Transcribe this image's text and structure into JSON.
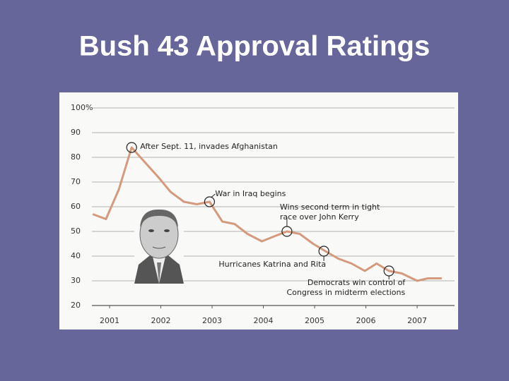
{
  "chart_data": {
    "type": "line",
    "title": "Bush 43 Approval Ratings",
    "x": [
      2001.17,
      2001.43,
      2001.68,
      2001.93,
      2002.19,
      2002.45,
      2002.69,
      2002.95,
      2003.2,
      2003.45,
      2003.7,
      2003.94,
      2004.19,
      2004.47,
      2004.71,
      2004.96,
      2005.21,
      2005.47,
      2005.71,
      2005.96,
      2006.22,
      2006.48,
      2006.71,
      2006.95,
      2007.2,
      2007.5,
      2007.71,
      2007.98
    ],
    "values": [
      57,
      55,
      67,
      84,
      78,
      72,
      66,
      62,
      61,
      62,
      54,
      53,
      49,
      46,
      48,
      50,
      49,
      45,
      42,
      39,
      37,
      34,
      37,
      34,
      33,
      30,
      31,
      31
    ],
    "color": "#d49a7e",
    "xlim": [
      2001.155,
      2008.23
    ],
    "xticks": [
      {
        "value": 2001.5,
        "label": "2001"
      },
      {
        "value": 2002.5,
        "label": "2002"
      },
      {
        "value": 2003.5,
        "label": "2003"
      },
      {
        "value": 2004.5,
        "label": "2004"
      },
      {
        "value": 2005.5,
        "label": "2005"
      },
      {
        "value": 2006.5,
        "label": "2006"
      },
      {
        "value": 2007.5,
        "label": "2007"
      }
    ],
    "ylim": [
      20,
      100
    ],
    "yticks": [
      20,
      30,
      40,
      50,
      60,
      70,
      80,
      90,
      {
        "value": 100,
        "label": "100%"
      }
    ],
    "grid": true,
    "annotations": [
      {
        "text": [
          "After Sept. 11, invades Afghanistan"
        ],
        "x": 2001.93,
        "y": 84
      },
      {
        "text": [
          "War in Iraq begins"
        ],
        "x": 2003.45,
        "y": 62
      },
      {
        "text": [
          "Wins second term in tight",
          "race over John Kerry"
        ],
        "x": 2004.96,
        "y": 50
      },
      {
        "text": [
          "Hurricanes Katrina and Rita"
        ],
        "x": 2005.68,
        "y": 42
      },
      {
        "text": [
          "Democrats win control of",
          "Congress in midterm elections"
        ],
        "x": 2006.95,
        "y": 34
      }
    ]
  }
}
